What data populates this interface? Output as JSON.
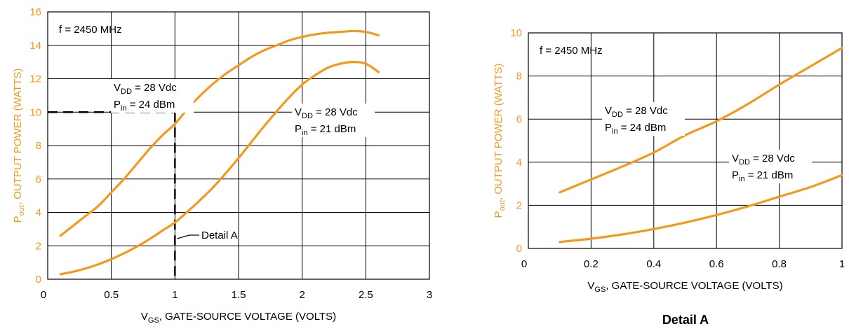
{
  "chart_data": [
    {
      "type": "line",
      "xlabel": {
        "main": "V",
        "sub": "GS",
        "rest": ", GATE-SOURCE VOLTAGE (VOLTS)"
      },
      "ylabel": {
        "main": "P",
        "sub": "out",
        "rest": ", OUTPUT POWER (WATTS)"
      },
      "xlim": [
        0,
        3
      ],
      "ylim": [
        0,
        16
      ],
      "xticks": [
        "0",
        "0.5",
        "1",
        "1.5",
        "2",
        "2.5",
        "3"
      ],
      "yticks": [
        "0",
        "2",
        "4",
        "6",
        "8",
        "10",
        "12",
        "14",
        "16"
      ],
      "grid": true,
      "note": "f = 2450 MHz",
      "series": [
        {
          "label1": {
            "main": "V",
            "sub": "DD",
            "rest": " = 28 Vdc"
          },
          "label2": {
            "main": "P",
            "sub": "in",
            "rest": " = 24 dBm"
          },
          "x": [
            0.1,
            0.2,
            0.3,
            0.4,
            0.5,
            0.6,
            0.7,
            0.8,
            0.9,
            1.0,
            1.1,
            1.2,
            1.3,
            1.4,
            1.5,
            1.6,
            1.7,
            1.8,
            1.9,
            2.0,
            2.1,
            2.2,
            2.3,
            2.4,
            2.5,
            2.6
          ],
          "y": [
            2.6,
            3.2,
            3.8,
            4.4,
            5.2,
            6.0,
            6.9,
            7.8,
            8.6,
            9.3,
            10.2,
            11.0,
            11.7,
            12.3,
            12.8,
            13.3,
            13.7,
            14.0,
            14.3,
            14.5,
            14.65,
            14.75,
            14.8,
            14.85,
            14.8,
            14.6
          ]
        },
        {
          "label1": {
            "main": "V",
            "sub": "DD",
            "rest": " = 28 Vdc"
          },
          "label2": {
            "main": "P",
            "sub": "in",
            "rest": " = 21 dBm"
          },
          "x": [
            0.1,
            0.2,
            0.3,
            0.4,
            0.5,
            0.6,
            0.7,
            0.8,
            0.9,
            1.0,
            1.1,
            1.2,
            1.3,
            1.4,
            1.5,
            1.6,
            1.7,
            1.8,
            1.9,
            2.0,
            2.1,
            2.2,
            2.3,
            2.4,
            2.5,
            2.6
          ],
          "y": [
            0.3,
            0.45,
            0.65,
            0.9,
            1.2,
            1.55,
            1.95,
            2.4,
            2.9,
            3.4,
            4.05,
            4.75,
            5.5,
            6.35,
            7.25,
            8.2,
            9.15,
            10.05,
            10.9,
            11.65,
            12.2,
            12.65,
            12.9,
            13.0,
            12.9,
            12.4
          ]
        }
      ],
      "guide_line": {
        "x": 1.0,
        "y": 10.0
      },
      "callout": "Detail A"
    },
    {
      "type": "line",
      "xlabel": {
        "main": "V",
        "sub": "GS",
        "rest": ", GATE-SOURCE VOLTAGE (VOLTS)"
      },
      "ylabel": {
        "main": "P",
        "sub": "out",
        "rest": ", OUTPUT POWER (WATTS)"
      },
      "xlim": [
        0,
        1
      ],
      "ylim": [
        0,
        10
      ],
      "xticks": [
        "0",
        "0.2",
        "0.4",
        "0.6",
        "0.8",
        "1"
      ],
      "yticks": [
        "0",
        "2",
        "4",
        "6",
        "8",
        "10"
      ],
      "grid": true,
      "note": "f = 2450 MHz",
      "caption": "Detail A",
      "series": [
        {
          "label1": {
            "main": "V",
            "sub": "DD",
            "rest": " = 28 Vdc"
          },
          "label2": {
            "main": "P",
            "sub": "in",
            "rest": " = 24 dBm"
          },
          "x": [
            0.1,
            0.2,
            0.3,
            0.4,
            0.5,
            0.6,
            0.7,
            0.8,
            0.9,
            1.0
          ],
          "y": [
            2.6,
            3.2,
            3.8,
            4.45,
            5.25,
            5.9,
            6.7,
            7.6,
            8.45,
            9.3
          ]
        },
        {
          "label1": {
            "main": "V",
            "sub": "DD",
            "rest": " = 28 Vdc"
          },
          "label2": {
            "main": "P",
            "sub": "in",
            "rest": " = 21 dBm"
          },
          "x": [
            0.1,
            0.2,
            0.3,
            0.4,
            0.5,
            0.6,
            0.7,
            0.8,
            0.9,
            1.0
          ],
          "y": [
            0.3,
            0.45,
            0.65,
            0.9,
            1.2,
            1.55,
            1.95,
            2.4,
            2.85,
            3.4
          ]
        }
      ]
    }
  ],
  "colors": {
    "curve": "#f39a1e",
    "ytick": "#f39a1e",
    "grid": "#000000"
  }
}
